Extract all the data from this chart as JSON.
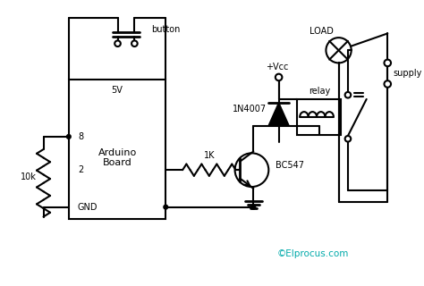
{
  "bg_color": "#ffffff",
  "line_color": "#000000",
  "text_color": "#000000",
  "cyan_color": "#00aaaa",
  "title": "©Elprocus.com",
  "labels": {
    "button": "button",
    "5v": "5V",
    "arduino": "Arduino\nBoard",
    "pin8": "8",
    "pin2": "2",
    "gnd": "GND",
    "res10k": "10k",
    "res1k": "1K",
    "diode": "1N4007",
    "transistor": "BC547",
    "vcc": "+Vcc",
    "load": "LOAD",
    "relay": "relay",
    "supply": "supply"
  }
}
